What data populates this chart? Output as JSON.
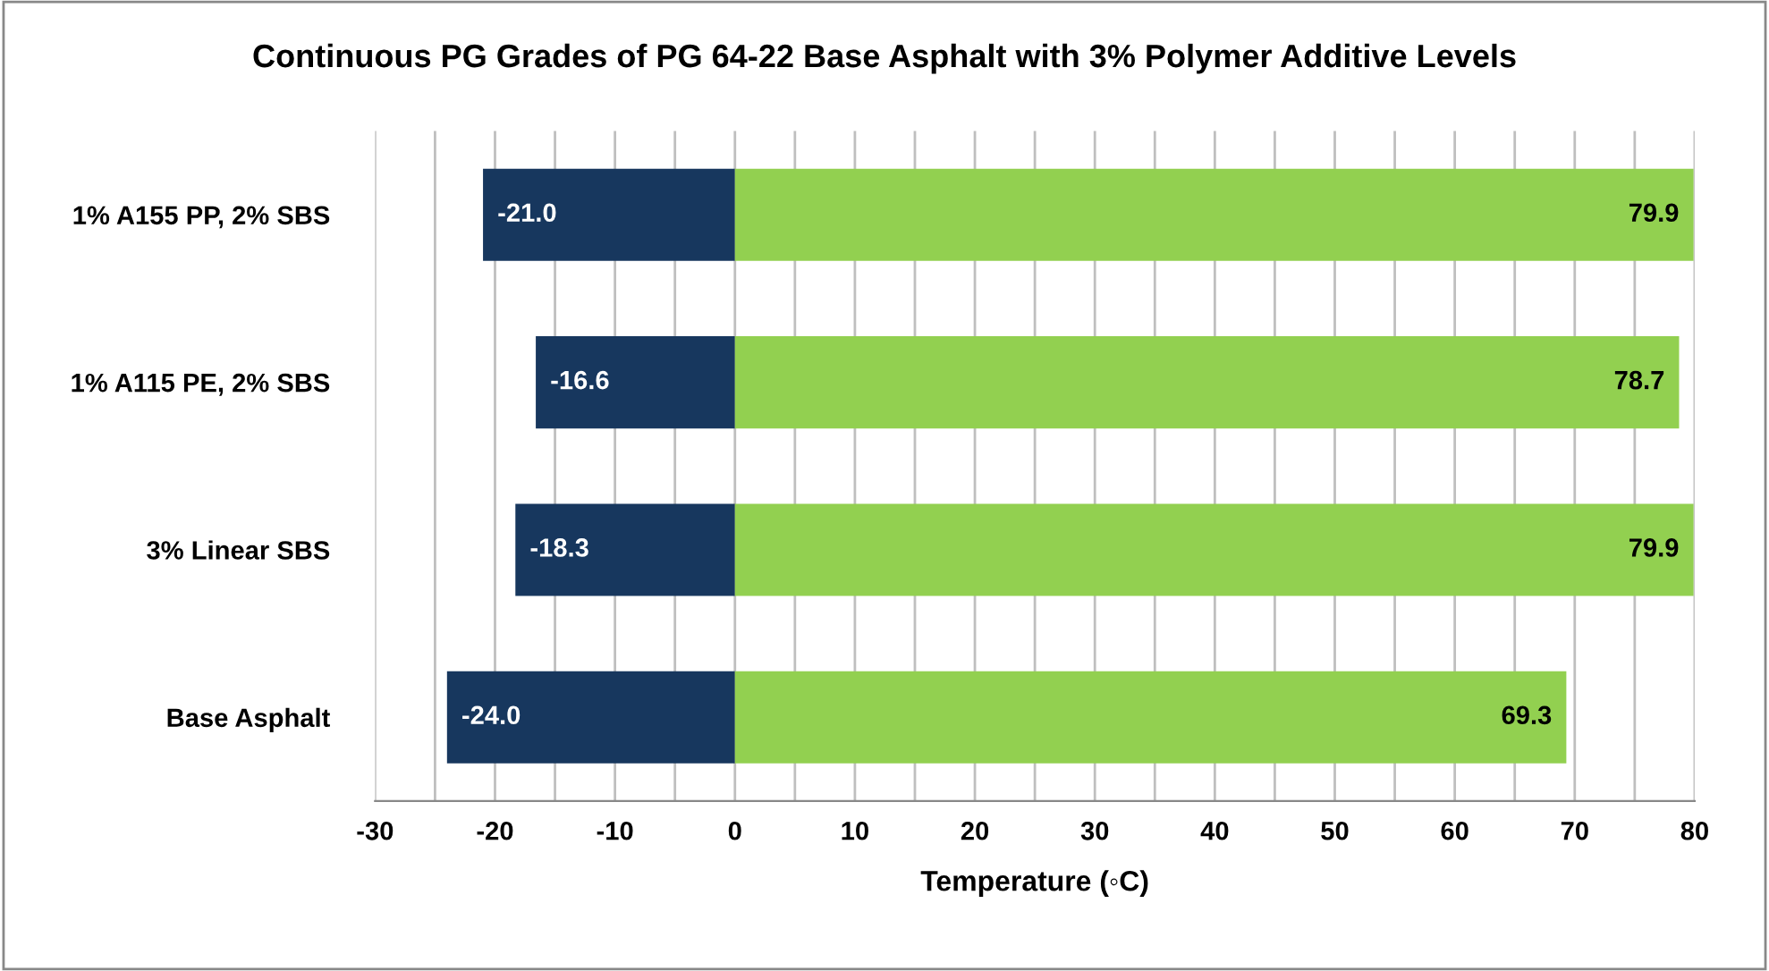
{
  "chart_data": {
    "type": "bar",
    "orientation": "horizontal",
    "title": "Continuous PG Grades of PG 64-22 Base Asphalt with 3% Polymer Additive Levels",
    "xlabel": "Temperature (◦C)",
    "categories": [
      "1% A155 PP, 2% SBS",
      "1% A115 PE, 2% SBS",
      "3% Linear SBS",
      "Base Asphalt"
    ],
    "series": [
      {
        "color": "#17375e",
        "values": [
          -21.0,
          -16.6,
          -18.3,
          -24.0
        ],
        "value_labels": [
          "-21.0",
          "-16.6",
          "-18.3",
          "-24.0"
        ]
      },
      {
        "color": "#92d050",
        "values": [
          79.9,
          78.7,
          79.9,
          69.3
        ],
        "value_labels": [
          "79.9",
          "78.7",
          "79.9",
          "69.3"
        ]
      }
    ],
    "stacked": true,
    "xlim": [
      -30,
      80
    ],
    "xticks": [
      -30,
      {
        "value": -25,
        "label": null
      },
      -20,
      {
        "value": -15,
        "label": null
      },
      -10,
      {
        "value": -5,
        "label": null
      },
      0,
      {
        "value": 5,
        "label": null
      },
      10,
      {
        "value": 15,
        "label": null
      },
      20,
      {
        "value": 25,
        "label": null
      },
      30,
      {
        "value": 35,
        "label": null
      },
      40,
      {
        "value": 45,
        "label": null
      },
      50,
      {
        "value": 55,
        "label": null
      },
      60,
      {
        "value": 65,
        "label": null
      },
      70,
      {
        "value": 75,
        "label": null
      },
      80
    ],
    "grid": "x",
    "legend": false
  }
}
